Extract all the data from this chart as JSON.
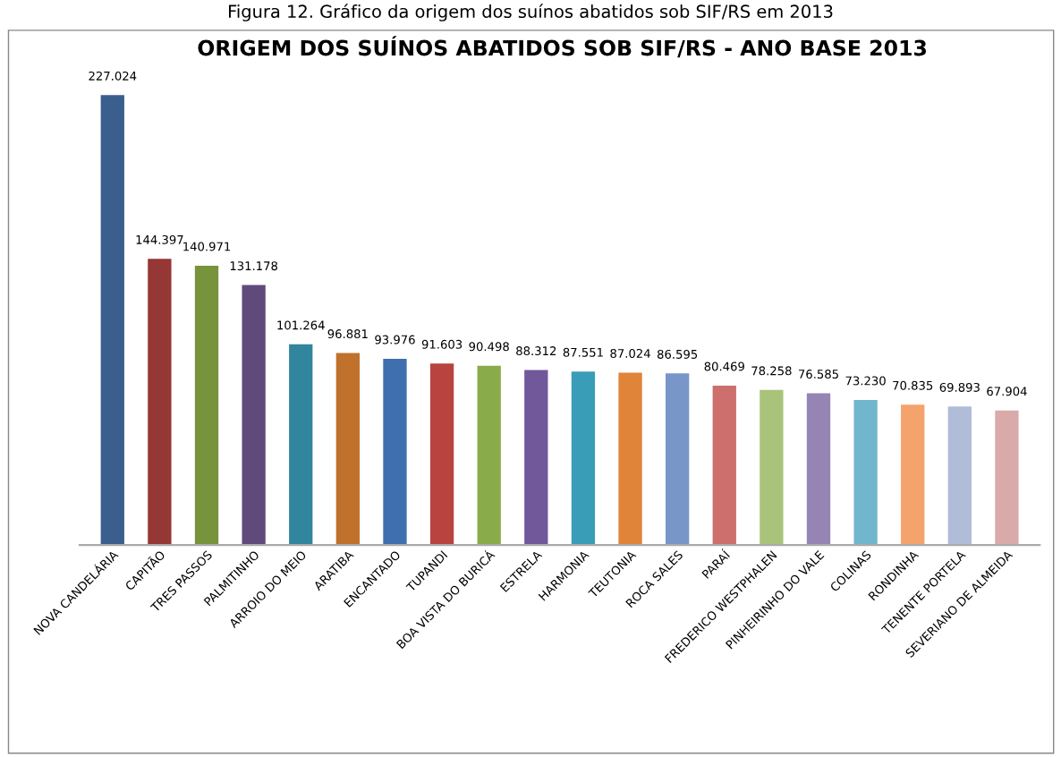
{
  "chart_data": {
    "type": "bar",
    "title": "ORIGEM DOS SUÍNOS ABATIDOS SOB SIF/RS - ANO BASE 2013",
    "annotations": [
      "Figura 12. Gráfico da origem dos suínos abatidos sob SIF/RS em 2013"
    ],
    "categories": [
      "NOVA CANDELÁRIA",
      "CAPITÃO",
      "TRES PASSOS",
      "PALMITINHO",
      "ARROIO DO MEIO",
      "ARATIBA",
      "ENCANTADO",
      "TUPANDI",
      "BOA VISTA DO BURICÁ",
      "ESTRELA",
      "HARMONIA",
      "TEUTONIA",
      "ROCA SALES",
      "PARAÍ",
      "FREDERICO WESTPHALEN",
      "PINHEIRINHO DO VALE",
      "COLINAS",
      "RONDINHA",
      "TENENTE PORTELA",
      "SEVERIANO DE ALMEIDA"
    ],
    "values": [
      227024,
      144397,
      140971,
      131178,
      101264,
      96881,
      93976,
      91603,
      90498,
      88312,
      87551,
      87024,
      86595,
      80469,
      78258,
      76585,
      73230,
      70835,
      69893,
      67904
    ],
    "value_labels": [
      "227.024",
      "144.397",
      "140.971",
      "131.178",
      "101.264",
      "96.881",
      "93.976",
      "91.603",
      "90.498",
      "88.312",
      "87.551",
      "87.024",
      "86.595",
      "80.469",
      "78.258",
      "76.585",
      "73.230",
      "70.835",
      "69.893",
      "67.904"
    ],
    "colors": [
      "#3a5f8f",
      "#953735",
      "#77933c",
      "#604a7b",
      "#31859c",
      "#c0712b",
      "#3f6fae",
      "#b8433f",
      "#8aab4a",
      "#71589a",
      "#3a9db8",
      "#e0843a",
      "#7896c8",
      "#cc6f6d",
      "#a9c47a",
      "#9684b4",
      "#71b6cc",
      "#f5a36c",
      "#b0bcd8",
      "#d9aaa9"
    ]
  }
}
